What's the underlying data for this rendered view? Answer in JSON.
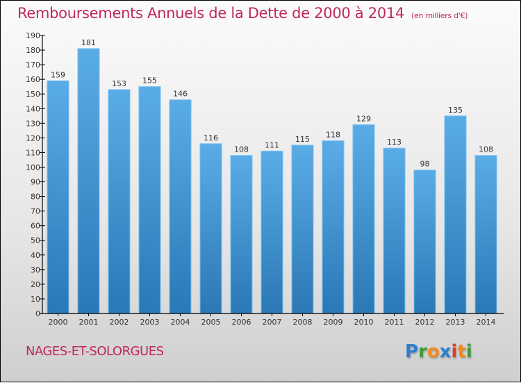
{
  "chart_data": {
    "type": "bar",
    "title": "Remboursements Annuels de la Dette de 2000 à 2014",
    "subtitle": "(en milliers d'€)",
    "xlabel": "",
    "ylabel": "",
    "categories": [
      "2000",
      "2001",
      "2002",
      "2003",
      "2004",
      "2005",
      "2006",
      "2007",
      "2008",
      "2009",
      "2010",
      "2011",
      "2012",
      "2013",
      "2014"
    ],
    "values": [
      159,
      181,
      153,
      155,
      146,
      116,
      108,
      111,
      115,
      118,
      129,
      113,
      98,
      135,
      108
    ],
    "ylim": [
      0,
      190
    ],
    "yticks": [
      0,
      10,
      20,
      30,
      40,
      50,
      60,
      70,
      80,
      90,
      100,
      110,
      120,
      130,
      140,
      150,
      160,
      170,
      180,
      190
    ],
    "grid": false,
    "data_labels": true,
    "bar_color_top": "#5aace6",
    "bar_color_bottom": "#2a78b6"
  },
  "footer": {
    "commune": "NAGES-ET-SOLORGUES",
    "logo_letters": [
      {
        "ch": "P",
        "color": "#2a7fd0"
      },
      {
        "ch": "r",
        "color": "#3a9a3a"
      },
      {
        "ch": "o",
        "color": "#f08a1a"
      },
      {
        "ch": "x",
        "color": "#2a7fd0"
      },
      {
        "ch": "i",
        "color": "#e03a2a"
      },
      {
        "ch": "t",
        "color": "#f08a1a"
      },
      {
        "ch": "i",
        "color": "#3a9a3a"
      }
    ]
  },
  "colors": {
    "title": "#c0285a"
  }
}
